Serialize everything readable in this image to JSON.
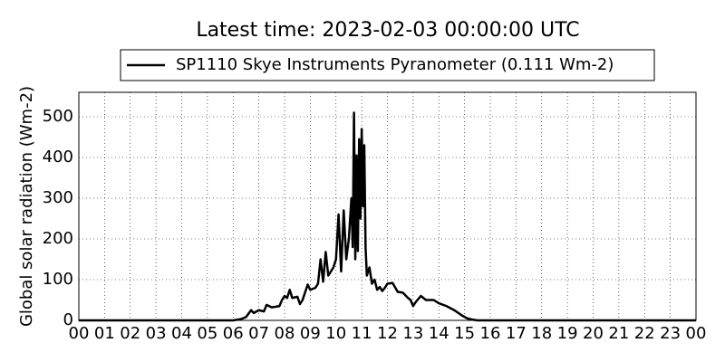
{
  "chart_data": {
    "type": "line",
    "title": "Latest time: 2023-02-03 00:00:00 UTC",
    "y_label": "Global solar radiation (Wm-2)",
    "x": [
      0,
      6.0,
      6.3,
      6.5,
      6.7,
      6.8,
      7.0,
      7.2,
      7.3,
      7.5,
      7.8,
      7.9,
      8.0,
      8.1,
      8.2,
      8.3,
      8.5,
      8.6,
      8.7,
      8.9,
      9.0,
      9.2,
      9.3,
      9.4,
      9.5,
      9.6,
      9.7,
      9.9,
      10.0,
      10.1,
      10.2,
      10.3,
      10.4,
      10.5,
      10.6,
      10.65,
      10.7,
      10.75,
      10.8,
      10.85,
      10.9,
      10.95,
      11.0,
      11.05,
      11.1,
      11.15,
      11.2,
      11.3,
      11.4,
      11.5,
      11.6,
      11.7,
      11.8,
      11.9,
      12.0,
      12.2,
      12.4,
      12.6,
      12.8,
      12.9,
      13.0,
      13.1,
      13.3,
      13.5,
      13.8,
      14.0,
      14.3,
      14.6,
      14.9,
      15.1,
      15.3,
      15.5,
      24
    ],
    "series": [
      {
        "name": "SP1110 Skye Instruments Pyranometer (0.111 Wm-2)",
        "color": "#000000",
        "values": [
          0,
          0,
          3,
          8,
          25,
          18,
          25,
          22,
          38,
          32,
          35,
          50,
          60,
          55,
          75,
          55,
          58,
          40,
          50,
          88,
          75,
          80,
          90,
          150,
          95,
          168,
          110,
          130,
          150,
          260,
          120,
          270,
          150,
          200,
          300,
          180,
          510,
          150,
          405,
          170,
          445,
          250,
          470,
          280,
          430,
          180,
          110,
          130,
          90,
          100,
          75,
          82,
          72,
          80,
          90,
          92,
          70,
          68,
          55,
          50,
          35,
          45,
          60,
          50,
          50,
          42,
          35,
          25,
          12,
          5,
          2,
          0,
          0
        ]
      }
    ],
    "xlim": [
      0,
      24
    ],
    "xticks": [
      {
        "value": 0,
        "label": "00"
      },
      {
        "value": 1,
        "label": "01"
      },
      {
        "value": 2,
        "label": "02"
      },
      {
        "value": 3,
        "label": "03"
      },
      {
        "value": 4,
        "label": "04"
      },
      {
        "value": 5,
        "label": "05"
      },
      {
        "value": 6,
        "label": "06"
      },
      {
        "value": 7,
        "label": "07"
      },
      {
        "value": 8,
        "label": "08"
      },
      {
        "value": 9,
        "label": "09"
      },
      10,
      11,
      12,
      13,
      14,
      15,
      16,
      17,
      18,
      19,
      20,
      21,
      22,
      23,
      {
        "value": 24,
        "label": "00"
      }
    ],
    "ylim": [
      0,
      560
    ],
    "yticks": [
      0,
      100,
      200,
      300,
      400,
      500
    ],
    "grid": true
  }
}
